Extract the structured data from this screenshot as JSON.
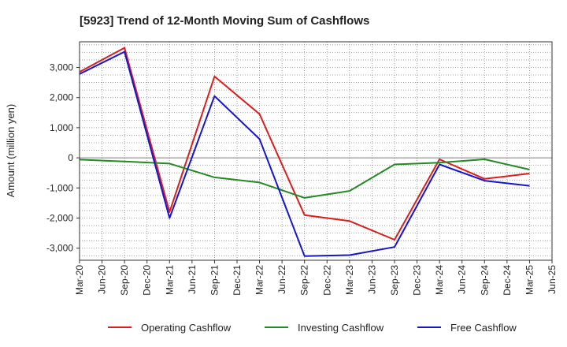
{
  "chart_data": {
    "type": "line",
    "title": "[5923]  Trend of 12-Month Moving Sum of Cashflows",
    "xlabel": "",
    "ylabel": "Amount (million yen)",
    "x_tick_labels": [
      "Mar-20",
      "Jun-20",
      "Sep-20",
      "Dec-20",
      "Mar-21",
      "Jun-21",
      "Sep-21",
      "Dec-21",
      "Mar-22",
      "Jun-22",
      "Sep-22",
      "Dec-22",
      "Mar-23",
      "Jun-23",
      "Sep-23",
      "Dec-23",
      "Mar-24",
      "Jun-24",
      "Sep-24",
      "Dec-24",
      "Mar-25",
      "Jun-25"
    ],
    "y_ticks": [
      -3000,
      -2000,
      -1000,
      0,
      1000,
      2000,
      3000
    ],
    "y_tick_labels": [
      "-3,000",
      "-2,000",
      "-1,000",
      "0",
      "1,000",
      "2,000",
      "3,000"
    ],
    "ylim": [
      -3400,
      3850
    ],
    "grid": true,
    "legend_position": "bottom",
    "series": [
      {
        "name": "Operating Cashflow",
        "color": "#dd1c1c",
        "x": [
          "Mar-20",
          "Sep-20",
          "Mar-21",
          "Sep-21",
          "Mar-22",
          "Sep-22",
          "Mar-23",
          "Sep-23",
          "Mar-24",
          "Sep-24",
          "Mar-25"
        ],
        "values": [
          2850,
          3650,
          -1800,
          2700,
          1450,
          -1900,
          -2100,
          -2720,
          -50,
          -700,
          -520
        ]
      },
      {
        "name": "Investing Cashflow",
        "color": "#228b22",
        "x": [
          "Mar-20",
          "Sep-20",
          "Mar-21",
          "Sep-21",
          "Mar-22",
          "Sep-22",
          "Mar-23",
          "Sep-23",
          "Mar-24",
          "Sep-24",
          "Mar-25"
        ],
        "values": [
          -60,
          -120,
          -190,
          -650,
          -820,
          -1330,
          -1100,
          -220,
          -160,
          -50,
          -390
        ]
      },
      {
        "name": "Free Cashflow",
        "color": "#1515cc",
        "x": [
          "Mar-20",
          "Sep-20",
          "Mar-21",
          "Sep-21",
          "Mar-22",
          "Sep-22",
          "Mar-23",
          "Sep-23",
          "Mar-24",
          "Sep-24",
          "Mar-25"
        ],
        "values": [
          2780,
          3520,
          -2000,
          2050,
          620,
          -3260,
          -3230,
          -2960,
          -220,
          -760,
          -930
        ]
      }
    ]
  }
}
